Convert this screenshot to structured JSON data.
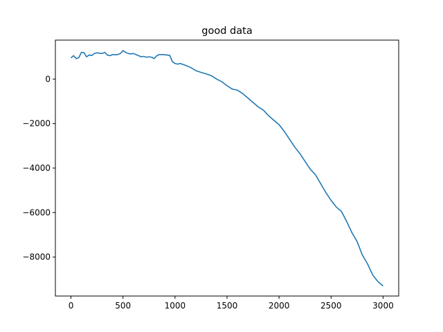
{
  "chart_data": {
    "type": "line",
    "title": "good data",
    "xlabel": "",
    "ylabel": "",
    "xlim": [
      -150,
      3150
    ],
    "ylim": [
      -9750,
      1750
    ],
    "x_ticks": [
      0,
      500,
      1000,
      1500,
      2000,
      2500,
      3000
    ],
    "x_tick_labels": [
      "0",
      "500",
      "1000",
      "1500",
      "2000",
      "2500",
      "3000"
    ],
    "y_ticks": [
      -8000,
      -6000,
      -4000,
      -2000,
      0
    ],
    "y_tick_labels": [
      "−8000",
      "−6000",
      "−4000",
      "−2000",
      "0"
    ],
    "grid": false,
    "series": [
      {
        "color": "#1f77b4",
        "x": [
          0,
          25,
          50,
          75,
          100,
          125,
          150,
          175,
          200,
          225,
          250,
          275,
          300,
          325,
          350,
          375,
          400,
          425,
          450,
          475,
          500,
          525,
          550,
          575,
          600,
          625,
          650,
          675,
          700,
          725,
          750,
          775,
          800,
          825,
          850,
          875,
          900,
          925,
          950,
          975,
          1000,
          1025,
          1050,
          1075,
          1100,
          1150,
          1200,
          1250,
          1300,
          1350,
          1400,
          1450,
          1500,
          1550,
          1600,
          1650,
          1700,
          1750,
          1800,
          1850,
          1900,
          1950,
          2000,
          2050,
          2100,
          2150,
          2200,
          2250,
          2300,
          2350,
          2400,
          2450,
          2500,
          2550,
          2600,
          2650,
          2700,
          2750,
          2800,
          2850,
          2900,
          2950,
          3000
        ],
        "values": [
          950,
          1050,
          920,
          960,
          1200,
          1180,
          1000,
          1080,
          1060,
          1150,
          1180,
          1160,
          1150,
          1200,
          1080,
          1050,
          1100,
          1090,
          1100,
          1150,
          1280,
          1200,
          1150,
          1130,
          1150,
          1100,
          1050,
          1000,
          1020,
          980,
          1000,
          980,
          920,
          1050,
          1100,
          1100,
          1090,
          1080,
          1060,
          780,
          700,
          670,
          700,
          660,
          620,
          520,
          380,
          300,
          230,
          150,
          0,
          -120,
          -300,
          -450,
          -500,
          -650,
          -850,
          -1050,
          -1250,
          -1400,
          -1650,
          -1850,
          -2050,
          -2350,
          -2700,
          -3050,
          -3350,
          -3700,
          -4050,
          -4300,
          -4700,
          -5100,
          -5450,
          -5750,
          -5950,
          -6400,
          -6900,
          -7300,
          -7900,
          -8300,
          -8800,
          -9100,
          -9300
        ]
      }
    ]
  }
}
